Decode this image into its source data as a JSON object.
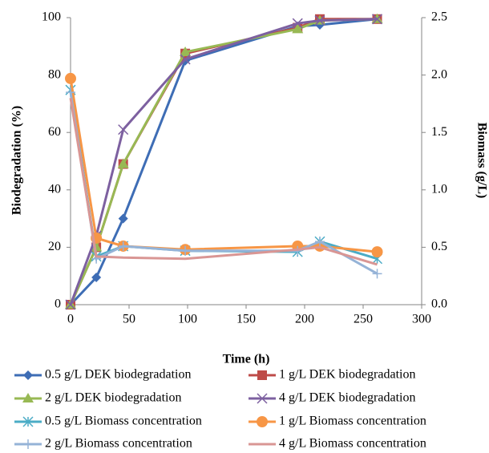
{
  "chart_data": {
    "type": "line",
    "x_label": "Time (h)",
    "y_label": "Biodegradation (%)",
    "y2_label": "Biomass (g/L)",
    "x": [
      0,
      22,
      45,
      98,
      194,
      213,
      262
    ],
    "xlim": [
      0,
      300
    ],
    "xticks": [
      0,
      50,
      100,
      150,
      200,
      250,
      300
    ],
    "ylim": [
      0,
      100
    ],
    "yticks": [
      0,
      20,
      40,
      60,
      80,
      100
    ],
    "y2lim": [
      0,
      2.5
    ],
    "y2ticks": [
      {
        "value": 0,
        "label": "0.0"
      },
      {
        "value": 0.5,
        "label": "0.5"
      },
      {
        "value": 1,
        "label": "1.0"
      },
      {
        "value": 1.5,
        "label": "1.5"
      },
      {
        "value": 2,
        "label": "2.0"
      },
      {
        "value": 2.5,
        "label": "2.5"
      }
    ],
    "grid": false,
    "series": [
      {
        "name": "0.5 g/L DEK biodegradation",
        "color": "#3e6db5",
        "marker": "diamond",
        "values": [
          0,
          9.5,
          30,
          85,
          97,
          97.5,
          99.5
        ]
      },
      {
        "name": "1 g/L DEK biodegradation",
        "color": "#be4b48",
        "marker": "square",
        "values": [
          0,
          20,
          49,
          87.5,
          96.5,
          99.5,
          99.5
        ]
      },
      {
        "name": "2 g/L DEK biodegradation",
        "color": "#98b954",
        "marker": "triangle",
        "values": [
          0,
          20,
          49,
          88,
          96,
          99,
          99.5
        ]
      },
      {
        "name": "4 g/L DEK biodegradation",
        "color": "#7d60a0",
        "marker": "x",
        "values": [
          0,
          24,
          61,
          85.5,
          98,
          99,
          99.5
        ]
      },
      {
        "name": "0.5 g/L Biomass concentration",
        "color": "#4bacc6",
        "marker": "asterisk",
        "axis": "y2",
        "values": [
          1.87,
          0.42,
          0.51,
          0.47,
          0.46,
          0.55,
          0.4
        ]
      },
      {
        "name": "1 g/L Biomass concentration",
        "color": "#f79646",
        "marker": "circle",
        "axis": "y2",
        "values": [
          1.97,
          0.58,
          0.51,
          0.48,
          0.51,
          0.51,
          0.46
        ]
      },
      {
        "name": "2 g/L Biomass concentration",
        "color": "#95b3d7",
        "marker": "plus",
        "axis": "y2",
        "values": [
          1.85,
          0.4,
          0.51,
          0.47,
          0.47,
          0.55,
          0.27
        ]
      },
      {
        "name": "4 g/L Biomass concentration",
        "color": "#d99694",
        "marker": "none",
        "axis": "y2",
        "values": [
          1.8,
          0.42,
          0.41,
          0.4,
          0.48,
          0.5,
          0.35
        ]
      }
    ]
  }
}
